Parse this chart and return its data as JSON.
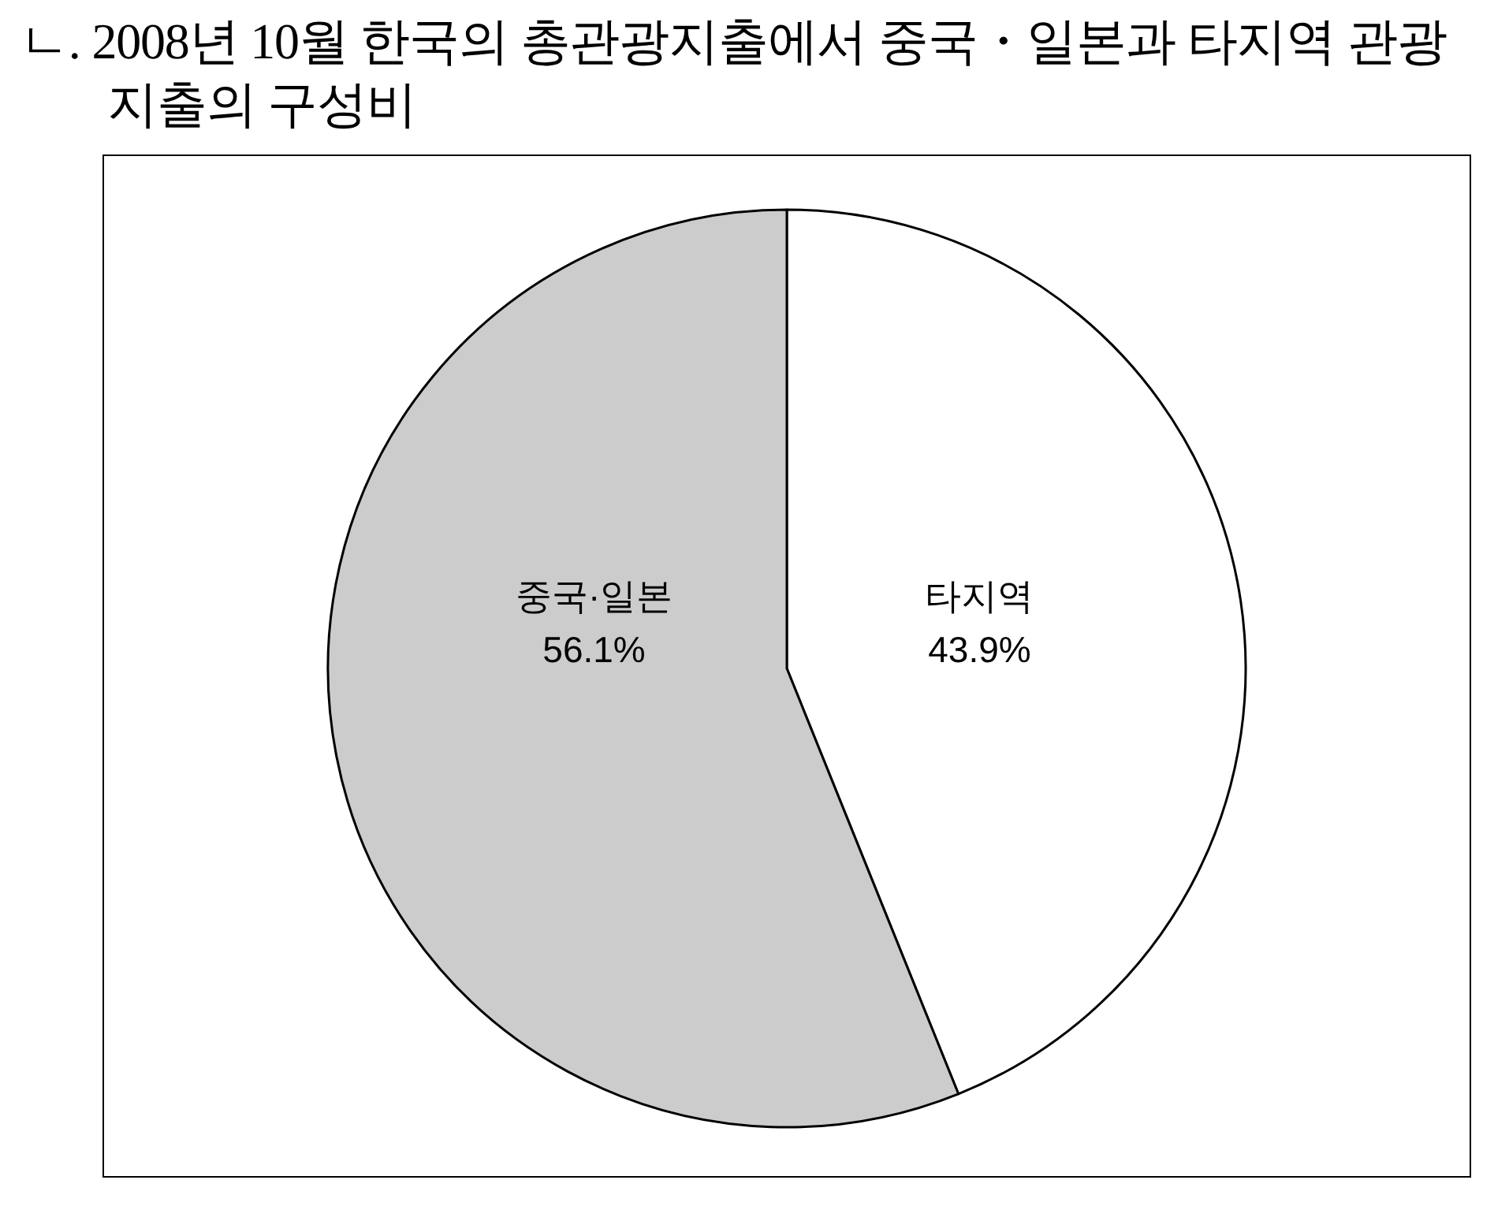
{
  "chart_data": {
    "type": "pie",
    "title": "ㄴ. 2008년 10월 한국의 총관광지출에서 중국・일본과 타지역 관광지출의 구성비",
    "categories": [
      "타지역",
      "중국·일본"
    ],
    "values": [
      43.9,
      56.1
    ],
    "value_labels": [
      "43.9%",
      "56.1%"
    ],
    "colors": [
      "#ffffff",
      "#cccccc"
    ]
  }
}
